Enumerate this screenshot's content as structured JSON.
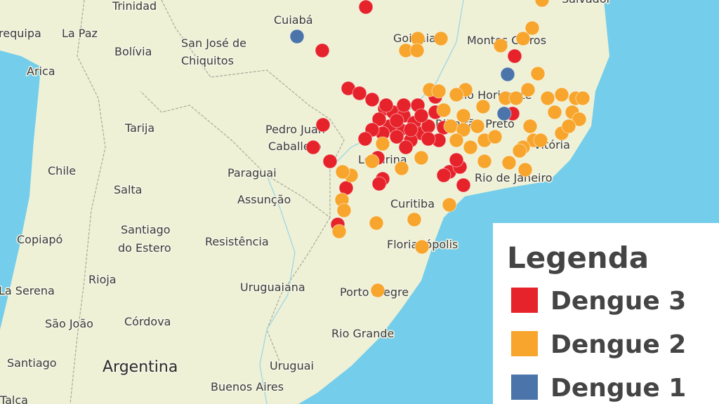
{
  "map": {
    "labels": [
      {
        "text": "Trinidad"
      },
      {
        "text": "Cuiabá"
      },
      {
        "text": "requipa"
      },
      {
        "text": "La Paz"
      },
      {
        "text": "Bolívia"
      },
      {
        "text": "San José de"
      },
      {
        "text": "Chiquitos"
      },
      {
        "text": "Goiânia"
      },
      {
        "text": "Montes Claros"
      },
      {
        "text": "Arica"
      },
      {
        "text": "Belo Horizonte"
      },
      {
        "text": "Tarija"
      },
      {
        "text": "Pedro Juan"
      },
      {
        "text": "Caballero"
      },
      {
        "text": "Ribeirão Preto"
      },
      {
        "text": "Chile"
      },
      {
        "text": "Paraguai"
      },
      {
        "text": "Londrina"
      },
      {
        "text": "Salta"
      },
      {
        "text": "Assunção"
      },
      {
        "text": "Rio de Janeiro"
      },
      {
        "text": "Curitiba"
      },
      {
        "text": "Vitória"
      },
      {
        "text": "Copiapó"
      },
      {
        "text": "Santiago"
      },
      {
        "text": "do Estero"
      },
      {
        "text": "Resistência"
      },
      {
        "text": "Florianópolis"
      },
      {
        "text": "La Serena"
      },
      {
        "text": "Rioja"
      },
      {
        "text": "Uruguaiana"
      },
      {
        "text": "Porto Alegre"
      },
      {
        "text": "São João"
      },
      {
        "text": "Córdova"
      },
      {
        "text": "Rio Grande"
      },
      {
        "text": "Santiago"
      },
      {
        "text": "Argentina"
      },
      {
        "text": "Uruguai"
      },
      {
        "text": "Buenos Aires"
      },
      {
        "text": "Talca"
      },
      {
        "text": "Salvador"
      }
    ],
    "legend": {
      "title": "Legenda",
      "items": [
        {
          "name": "Dengue 3",
          "color": "#e6222a"
        },
        {
          "name": "Dengue 2",
          "color": "#f7a52c"
        },
        {
          "name": "Dengue 1",
          "color": "#4a74aa"
        }
      ]
    }
  }
}
